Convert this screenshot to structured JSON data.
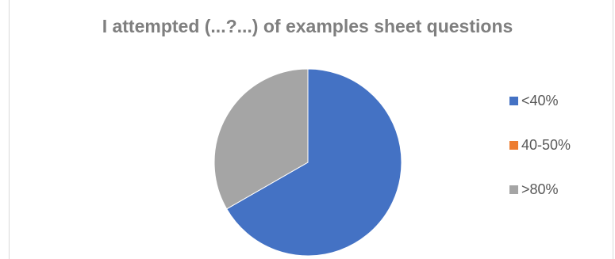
{
  "chart_data": {
    "type": "pie",
    "title": "I attempted (...?...) of examples sheet questions",
    "categories": [
      "<40%",
      "40-50%",
      ">80%"
    ],
    "values": [
      66.7,
      0,
      33.3
    ],
    "colors": [
      "#4472c4",
      "#ed7d31",
      "#a5a5a5"
    ],
    "legend": "right",
    "start_angle_deg": 0,
    "direction": "clockwise"
  }
}
